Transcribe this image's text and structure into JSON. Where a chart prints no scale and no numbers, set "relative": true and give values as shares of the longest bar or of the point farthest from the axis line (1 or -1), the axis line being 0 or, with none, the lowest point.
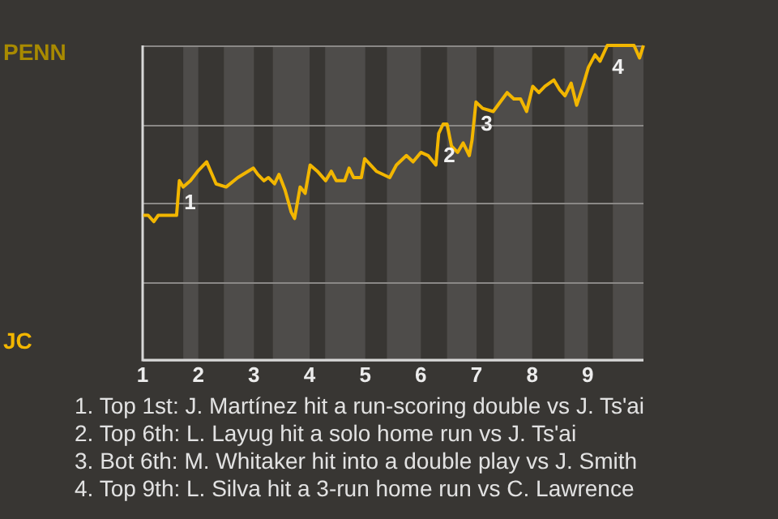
{
  "chart_data": {
    "type": "line",
    "relative": true,
    "x": [
      1.01,
      1.1,
      1.2,
      1.28,
      1.61,
      1.66,
      1.73,
      1.86,
      1.99,
      2.15,
      2.32,
      2.5,
      2.71,
      2.99,
      3.07,
      3.18,
      3.26,
      3.37,
      3.45,
      3.56,
      3.67,
      3.73,
      3.83,
      3.92,
      4.01,
      4.14,
      4.29,
      4.39,
      4.48,
      4.63,
      4.71,
      4.79,
      4.93,
      4.99,
      5.2,
      5.44,
      5.56,
      5.74,
      5.86,
      6.0,
      6.13,
      6.27,
      6.32,
      6.4,
      6.47,
      6.55,
      6.66,
      6.76,
      6.87,
      6.92,
      6.99,
      7.11,
      7.3,
      7.55,
      7.67,
      7.79,
      7.9,
      8.01,
      8.12,
      8.23,
      8.39,
      8.49,
      8.59,
      8.7,
      8.8,
      8.91,
      9.01,
      9.13,
      9.22,
      9.35,
      9.83,
      9.93,
      10
    ],
    "series": [
      {
        "color": "#f2b600",
        "values": [
          0.46,
          0.46,
          0.44,
          0.46,
          0.46,
          0.57,
          0.55,
          0.57,
          0.6,
          0.63,
          0.56,
          0.55,
          0.58,
          0.61,
          0.59,
          0.57,
          0.58,
          0.56,
          0.59,
          0.54,
          0.47,
          0.45,
          0.55,
          0.53,
          0.62,
          0.6,
          0.57,
          0.6,
          0.57,
          0.57,
          0.61,
          0.58,
          0.58,
          0.64,
          0.6,
          0.58,
          0.62,
          0.65,
          0.63,
          0.66,
          0.65,
          0.62,
          0.72,
          0.75,
          0.75,
          0.68,
          0.66,
          0.69,
          0.65,
          0.7,
          0.82,
          0.8,
          0.79,
          0.85,
          0.83,
          0.83,
          0.79,
          0.87,
          0.85,
          0.87,
          0.89,
          0.86,
          0.84,
          0.88,
          0.81,
          0.87,
          0.93,
          0.97,
          0.95,
          1,
          1,
          0.96,
          1
        ]
      }
    ],
    "xlim": [
      1,
      10
    ],
    "xticks": [
      1,
      2,
      3,
      4,
      5,
      6,
      7,
      8,
      9
    ],
    "grid": "y",
    "marker": "none",
    "bands": [
      {
        "axis": "x",
        "from": 1.73,
        "to": 2.0,
        "color": "#4e4c4a"
      },
      {
        "axis": "x",
        "from": 2.46,
        "to": 3.0,
        "color": "#4e4c4a"
      },
      {
        "axis": "x",
        "from": 3.34,
        "to": 4.0,
        "color": "#4e4c4a"
      },
      {
        "axis": "x",
        "from": 4.28,
        "to": 5.0,
        "color": "#4e4c4a"
      },
      {
        "axis": "x",
        "from": 5.39,
        "to": 6.0,
        "color": "#4e4c4a"
      },
      {
        "axis": "x",
        "from": 6.47,
        "to": 7.0,
        "color": "#4e4c4a"
      },
      {
        "axis": "x",
        "from": 7.31,
        "to": 8.0,
        "color": "#4e4c4a"
      },
      {
        "axis": "x",
        "from": 8.58,
        "to": 9.0,
        "color": "#4e4c4a"
      },
      {
        "axis": "x",
        "from": 9.45,
        "to": 10,
        "color": "#4e4c4a"
      }
    ],
    "annotations": [
      "PENN",
      "JC",
      {
        "text": "1",
        "x": 1.66,
        "y": 0.57
      },
      {
        "text": "2",
        "x": 6.32,
        "y": 0.72
      },
      {
        "text": "3",
        "x": 6.99,
        "y": 0.82
      },
      {
        "text": "4",
        "x": 9.35,
        "y": 1
      },
      "1. Top 1st: J. Martínez hit a run-scoring double vs J. Ts'ai",
      "2. Top 6th: L. Layug hit a solo home run vs J. Ts'ai",
      "3. Bot 6th: M. Whitaker hit into a double play vs J. Smith",
      "4. Top 9th: L. Silva hit a 3-run home run vs C. Lawrence"
    ]
  }
}
